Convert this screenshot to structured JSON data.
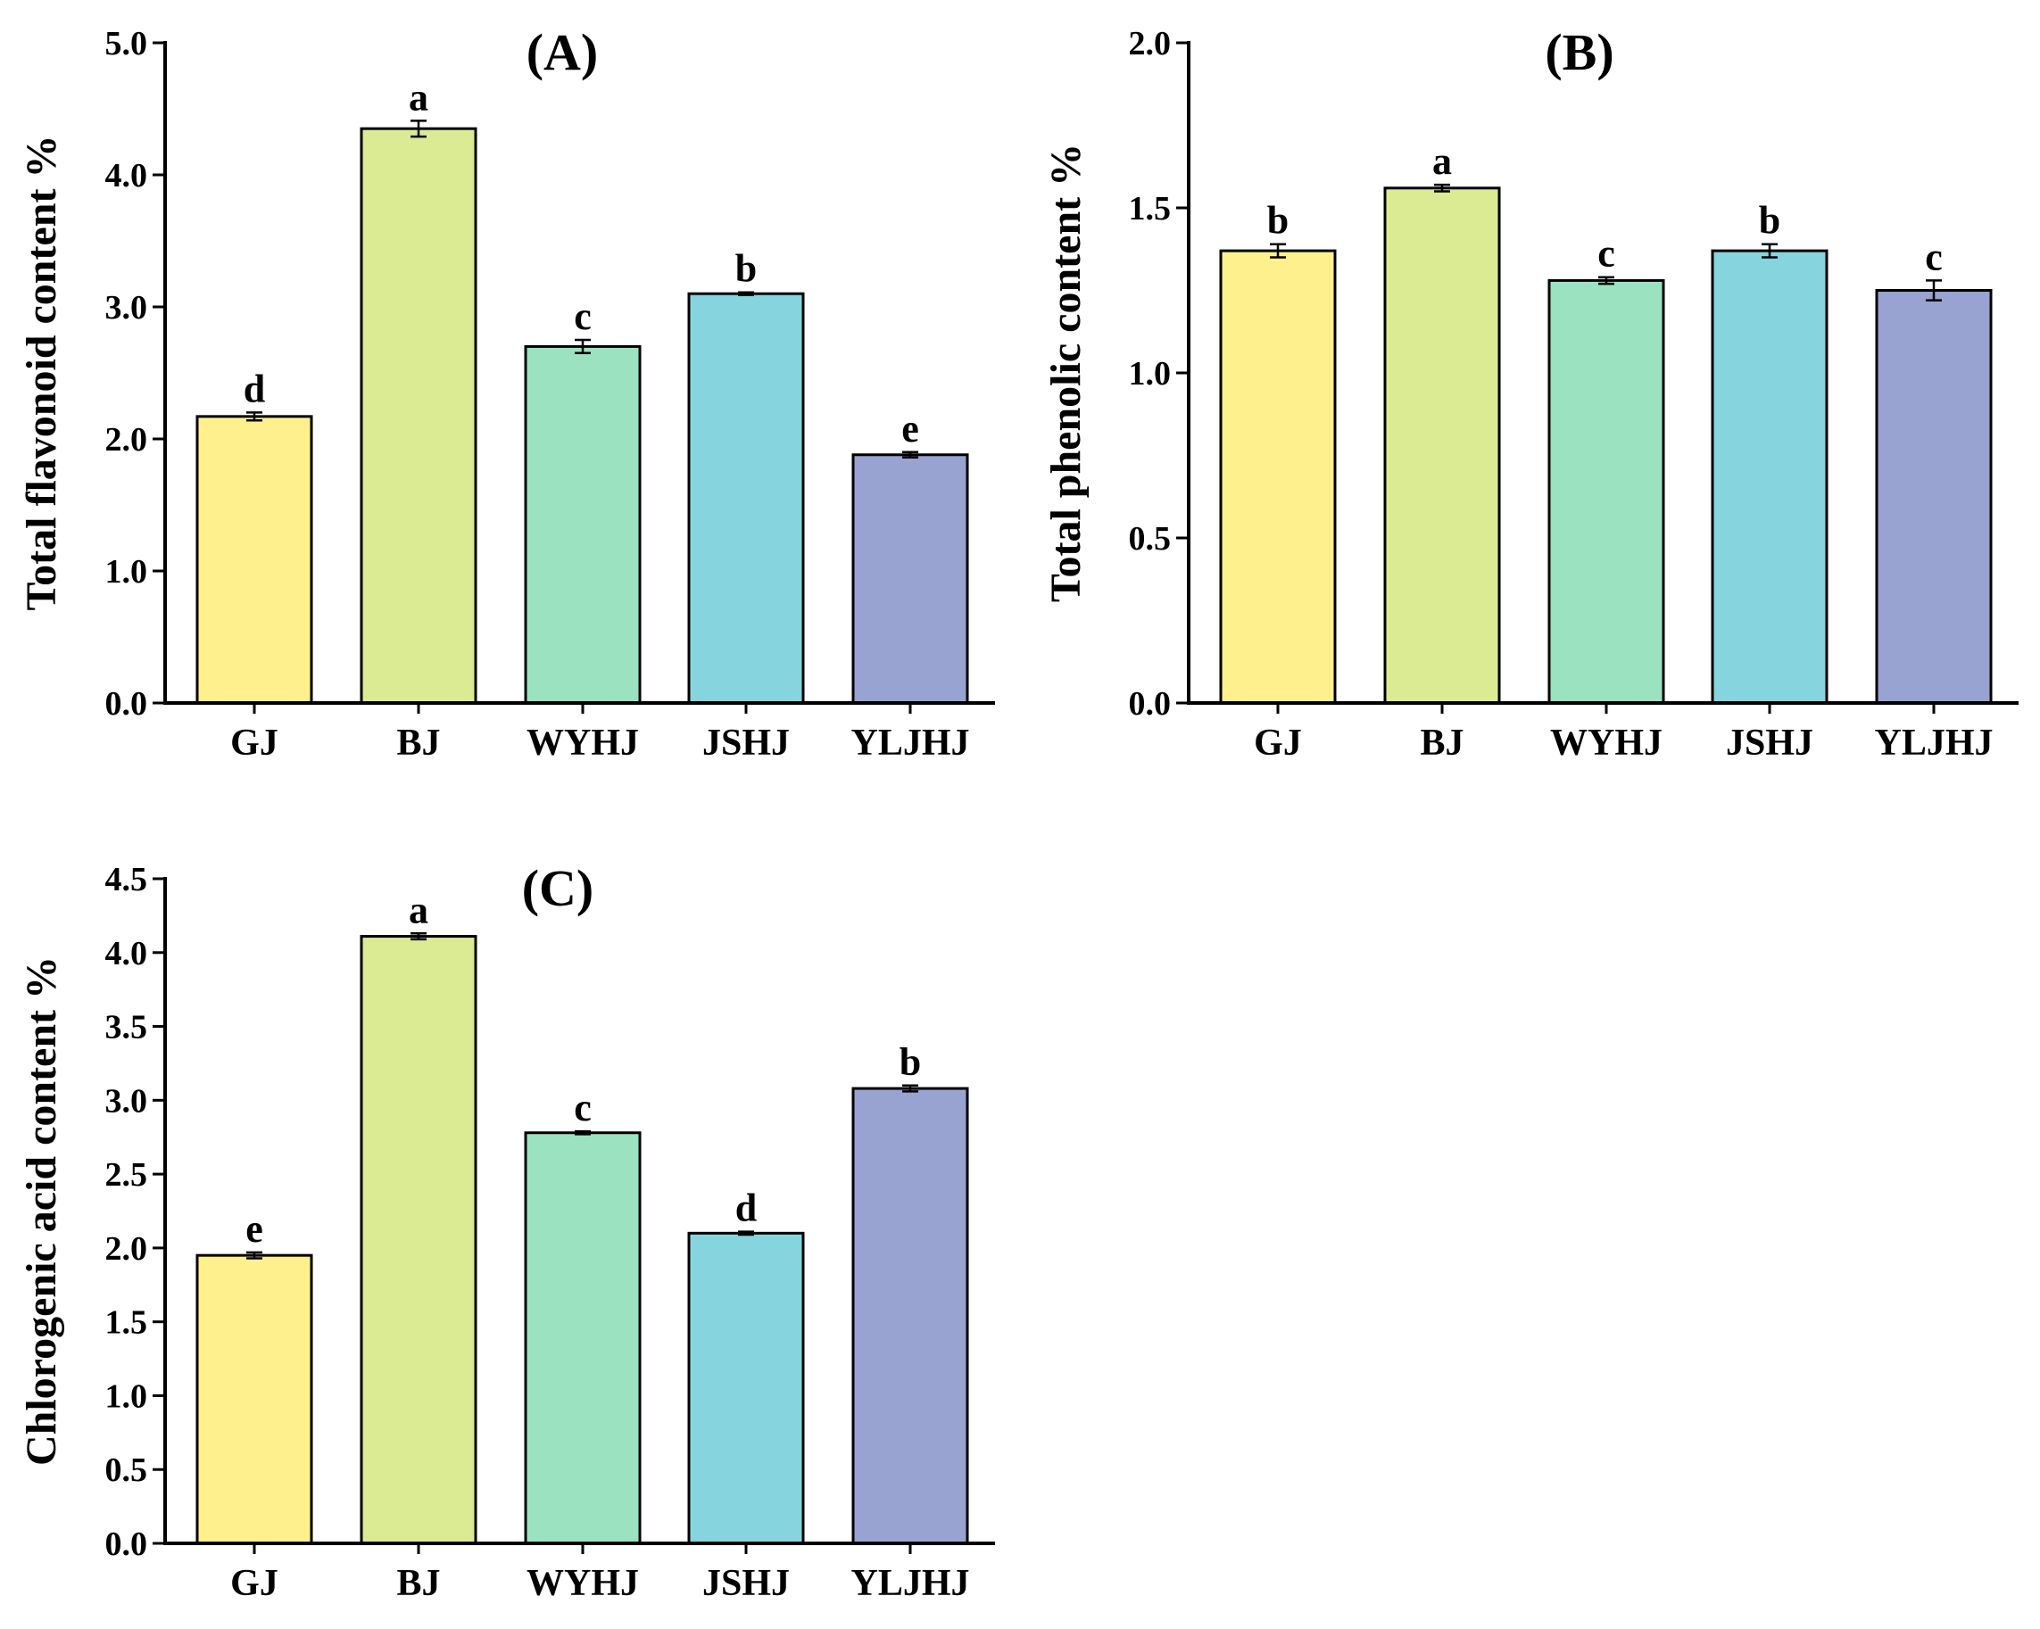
{
  "chart_data": [
    {
      "type": "bar",
      "title": "(A)",
      "xlabel": "",
      "ylabel": "Total flavonoid content %",
      "categories": [
        "GJ",
        "BJ",
        "WYHJ",
        "JSHJ",
        "YLJHJ"
      ],
      "values": [
        2.17,
        4.35,
        2.7,
        3.1,
        1.88
      ],
      "errors": [
        0.03,
        0.06,
        0.05,
        0.01,
        0.02
      ],
      "letters": [
        "d",
        "a",
        "c",
        "b",
        "e"
      ],
      "colors": [
        "#FFF08E",
        "#DBEB93",
        "#9BE3C0",
        "#86D5DE",
        "#98A3D1"
      ],
      "ylim": [
        0,
        5.0
      ],
      "yticks": [
        0.0,
        1.0,
        2.0,
        3.0,
        4.0,
        5.0
      ],
      "ytick_labels": [
        "0.0",
        "1.0",
        "2.0",
        "3.0",
        "4.0",
        "5.0"
      ],
      "grid": false,
      "legend": "none"
    },
    {
      "type": "bar",
      "title": "(B)",
      "xlabel": "",
      "ylabel": "Total phenolic content %",
      "categories": [
        "GJ",
        "BJ",
        "WYHJ",
        "JSHJ",
        "YLJHJ"
      ],
      "values": [
        1.37,
        1.56,
        1.28,
        1.37,
        1.25
      ],
      "errors": [
        0.02,
        0.01,
        0.01,
        0.02,
        0.03
      ],
      "letters": [
        "b",
        "a",
        "c",
        "b",
        "c"
      ],
      "colors": [
        "#FFF08E",
        "#DBEB93",
        "#9BE3C0",
        "#86D5DE",
        "#98A3D1"
      ],
      "ylim": [
        0,
        2.0
      ],
      "yticks": [
        0.0,
        0.5,
        1.0,
        1.5,
        2.0
      ],
      "ytick_labels": [
        "0.0",
        "0.5",
        "1.0",
        "1.5",
        "2.0"
      ],
      "grid": false,
      "legend": "none"
    },
    {
      "type": "bar",
      "title": "(C)",
      "xlabel": "",
      "ylabel": "Chlorogenic acid content %",
      "categories": [
        "GJ",
        "BJ",
        "WYHJ",
        "JSHJ",
        "YLJHJ"
      ],
      "values": [
        1.95,
        4.11,
        2.78,
        2.1,
        3.08
      ],
      "errors": [
        0.02,
        0.02,
        0.01,
        0.01,
        0.02
      ],
      "letters": [
        "e",
        "a",
        "c",
        "d",
        "b"
      ],
      "colors": [
        "#FFF08E",
        "#DBEB93",
        "#9BE3C0",
        "#86D5DE",
        "#98A3D1"
      ],
      "ylim": [
        0,
        4.5
      ],
      "yticks": [
        0.0,
        0.5,
        1.0,
        1.5,
        2.0,
        2.5,
        3.0,
        3.5,
        4.0,
        4.5
      ],
      "ytick_labels": [
        "0.0",
        "0.5",
        "1.0",
        "1.5",
        "2.0",
        "2.5",
        "3.0",
        "3.5",
        "4.0",
        "4.5"
      ],
      "grid": false,
      "legend": "none"
    }
  ]
}
